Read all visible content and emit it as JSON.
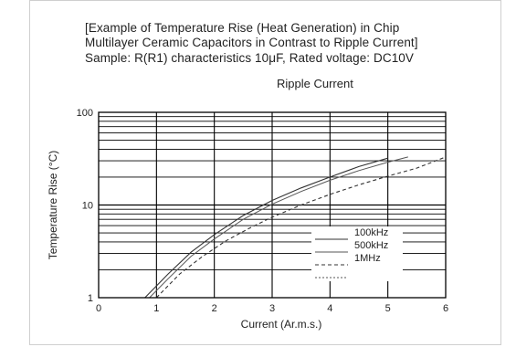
{
  "header": {
    "line1": "[Example of Temperature Rise (Heat Generation) in Chip",
    "line2": "Multilayer Ceramic Capacitors in Contrast to Ripple Current]",
    "line3": "Sample: R(R1) characteristics 10μF, Rated voltage: DC10V"
  },
  "chart_data": {
    "type": "line",
    "title": "Ripple Current",
    "xlabel": "Current (Ar.m.s.)",
    "ylabel": "Temperature Rise (°C)",
    "xlim": [
      0,
      6
    ],
    "ylim": [
      1,
      100
    ],
    "yscale": "log",
    "grid": true,
    "xticks": [
      "0",
      "1",
      "2",
      "3",
      "4",
      "5",
      "6"
    ],
    "yticks": [
      "1",
      "10",
      "100"
    ],
    "legend_position": "bottom-right",
    "series": [
      {
        "name": "100kHz",
        "x": [
          0.8,
          1.2,
          1.6,
          2.0,
          2.5,
          3.0,
          3.5,
          4.0,
          4.5,
          5.0
        ],
        "y": [
          1.0,
          1.8,
          3.1,
          4.8,
          7.7,
          11.2,
          15.3,
          20.0,
          26.0,
          32.0
        ]
      },
      {
        "name": "500kHz",
        "x": [
          0.88,
          1.2,
          1.6,
          2.0,
          2.5,
          3.0,
          3.5,
          4.0,
          4.5,
          5.0,
          5.35
        ],
        "y": [
          1.0,
          1.6,
          2.8,
          4.3,
          7.0,
          10.2,
          14.0,
          18.5,
          23.5,
          29.0,
          33.0
        ]
      },
      {
        "name": "1MHz",
        "x": [
          1.0,
          1.4,
          1.8,
          2.2,
          2.6,
          3.0,
          3.5,
          4.0,
          4.5,
          5.0,
          5.5,
          6.0
        ],
        "y": [
          1.0,
          1.8,
          2.8,
          4.1,
          5.6,
          7.4,
          10.0,
          13.0,
          16.5,
          20.5,
          25.0,
          33.0
        ]
      },
      {
        "name": "",
        "x": [],
        "y": []
      }
    ]
  },
  "colors": {
    "frame": "#cfcfcf",
    "grid": "#000000",
    "text": "#222222",
    "line": "#333333"
  }
}
